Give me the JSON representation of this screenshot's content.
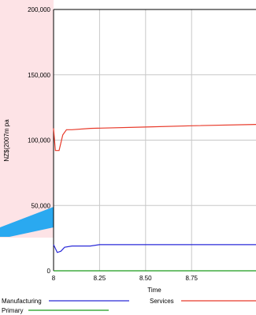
{
  "chart_data": {
    "type": "line",
    "xlabel": "Time",
    "ylabel": "NZ$(2007m pa",
    "x_ticks": [
      "8",
      "8.25",
      "8.50",
      "8.75"
    ],
    "y_ticks": [
      "0",
      "50,000",
      "100,000",
      "150,000",
      "200,000"
    ],
    "xlim": [
      8,
      9.1
    ],
    "ylim": [
      0,
      200000
    ],
    "grid": true,
    "series": [
      {
        "name": "Manufacturing",
        "color": "#2a2ad8",
        "x": [
          8.0,
          8.02,
          8.04,
          8.06,
          8.1,
          8.2,
          8.25,
          8.5,
          8.75,
          9.1
        ],
        "y": [
          20000,
          14000,
          15000,
          18000,
          19000,
          19000,
          20000,
          20000,
          20000,
          20000
        ]
      },
      {
        "name": "Services",
        "color": "#e83a2a",
        "x": [
          8.0,
          8.01,
          8.03,
          8.05,
          8.07,
          8.1,
          8.2,
          8.5,
          8.75,
          9.1
        ],
        "y": [
          109000,
          92000,
          92000,
          104000,
          108000,
          108000,
          109000,
          110000,
          111000,
          112000
        ]
      },
      {
        "name": "Primary",
        "color": "#1a9a1a",
        "x": [
          8.0,
          9.1
        ],
        "y": [
          0,
          0
        ]
      }
    ],
    "legend_position": "bottom"
  }
}
